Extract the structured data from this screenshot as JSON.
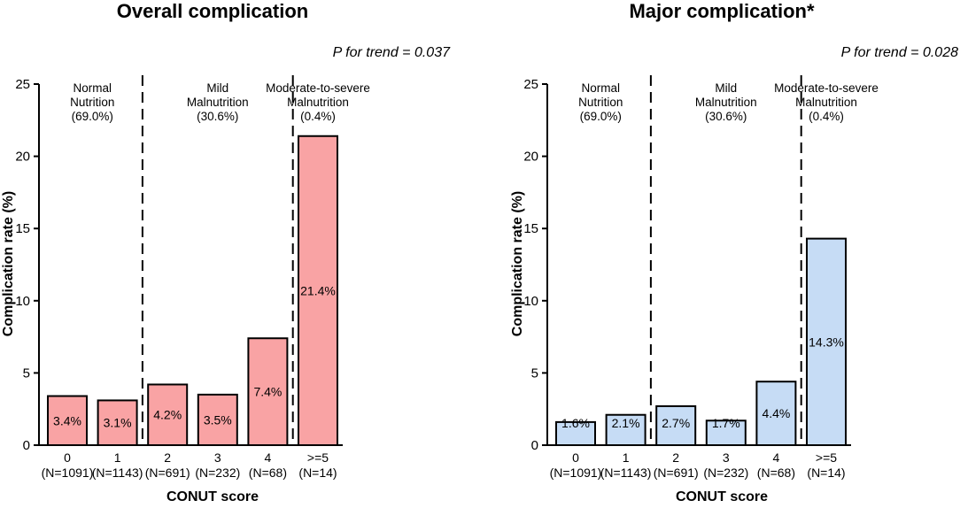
{
  "chart_data": [
    {
      "type": "bar",
      "title": "Overall complication",
      "trend_text": "P for trend = 0.037",
      "xlabel": "CONUT score",
      "ylabel": "Complication rate (%)",
      "ylim": [
        0,
        25
      ],
      "yticks": [
        "0",
        "5",
        "10",
        "15",
        "20",
        "25"
      ],
      "categories": [
        "0",
        "1",
        "2",
        "3",
        "4",
        ">=5"
      ],
      "counts": [
        "(N=1091)",
        "(N=1143)",
        "(N=691)",
        "(N=232)",
        "(N=68)",
        "(N=14)"
      ],
      "values": [
        3.4,
        3.1,
        4.2,
        3.5,
        7.4,
        21.4
      ],
      "value_labels": [
        "3.4%",
        "3.1%",
        "4.2%",
        "3.5%",
        "7.4%",
        "21.4%"
      ],
      "bar_color": "#f9a3a4",
      "regions": [
        {
          "lines": [
            "Normal",
            "Nutrition",
            "(69.0%)"
          ]
        },
        {
          "lines": [
            "Mild",
            "Malnutrition",
            "(30.6%)"
          ]
        },
        {
          "lines": [
            "Moderate-to-severe",
            "Malnutrition",
            "(0.4%)"
          ]
        }
      ]
    },
    {
      "type": "bar",
      "title": "Major complication*",
      "trend_text": "P for trend = 0.028",
      "xlabel": "CONUT score",
      "ylabel": "Complication rate (%)",
      "ylim": [
        0,
        25
      ],
      "yticks": [
        "0",
        "5",
        "10",
        "15",
        "20",
        "25"
      ],
      "categories": [
        "0",
        "1",
        "2",
        "3",
        "4",
        ">=5"
      ],
      "counts": [
        "(N=1091)",
        "(N=1143)",
        "(N=691)",
        "(N=232)",
        "(N=68)",
        "(N=14)"
      ],
      "values": [
        1.6,
        2.1,
        2.7,
        1.7,
        4.4,
        14.3
      ],
      "value_labels": [
        "1.6%",
        "2.1%",
        "2.7%",
        "1.7%",
        "4.4%",
        "14.3%"
      ],
      "bar_color": "#c6dcf5",
      "regions": [
        {
          "lines": [
            "Normal",
            "Nutrition",
            "(69.0%)"
          ]
        },
        {
          "lines": [
            "Mild",
            "Malnutrition",
            "(30.6%)"
          ]
        },
        {
          "lines": [
            "Moderate-to-severe",
            "Malnutrition",
            "(0.4%)"
          ]
        }
      ]
    }
  ]
}
